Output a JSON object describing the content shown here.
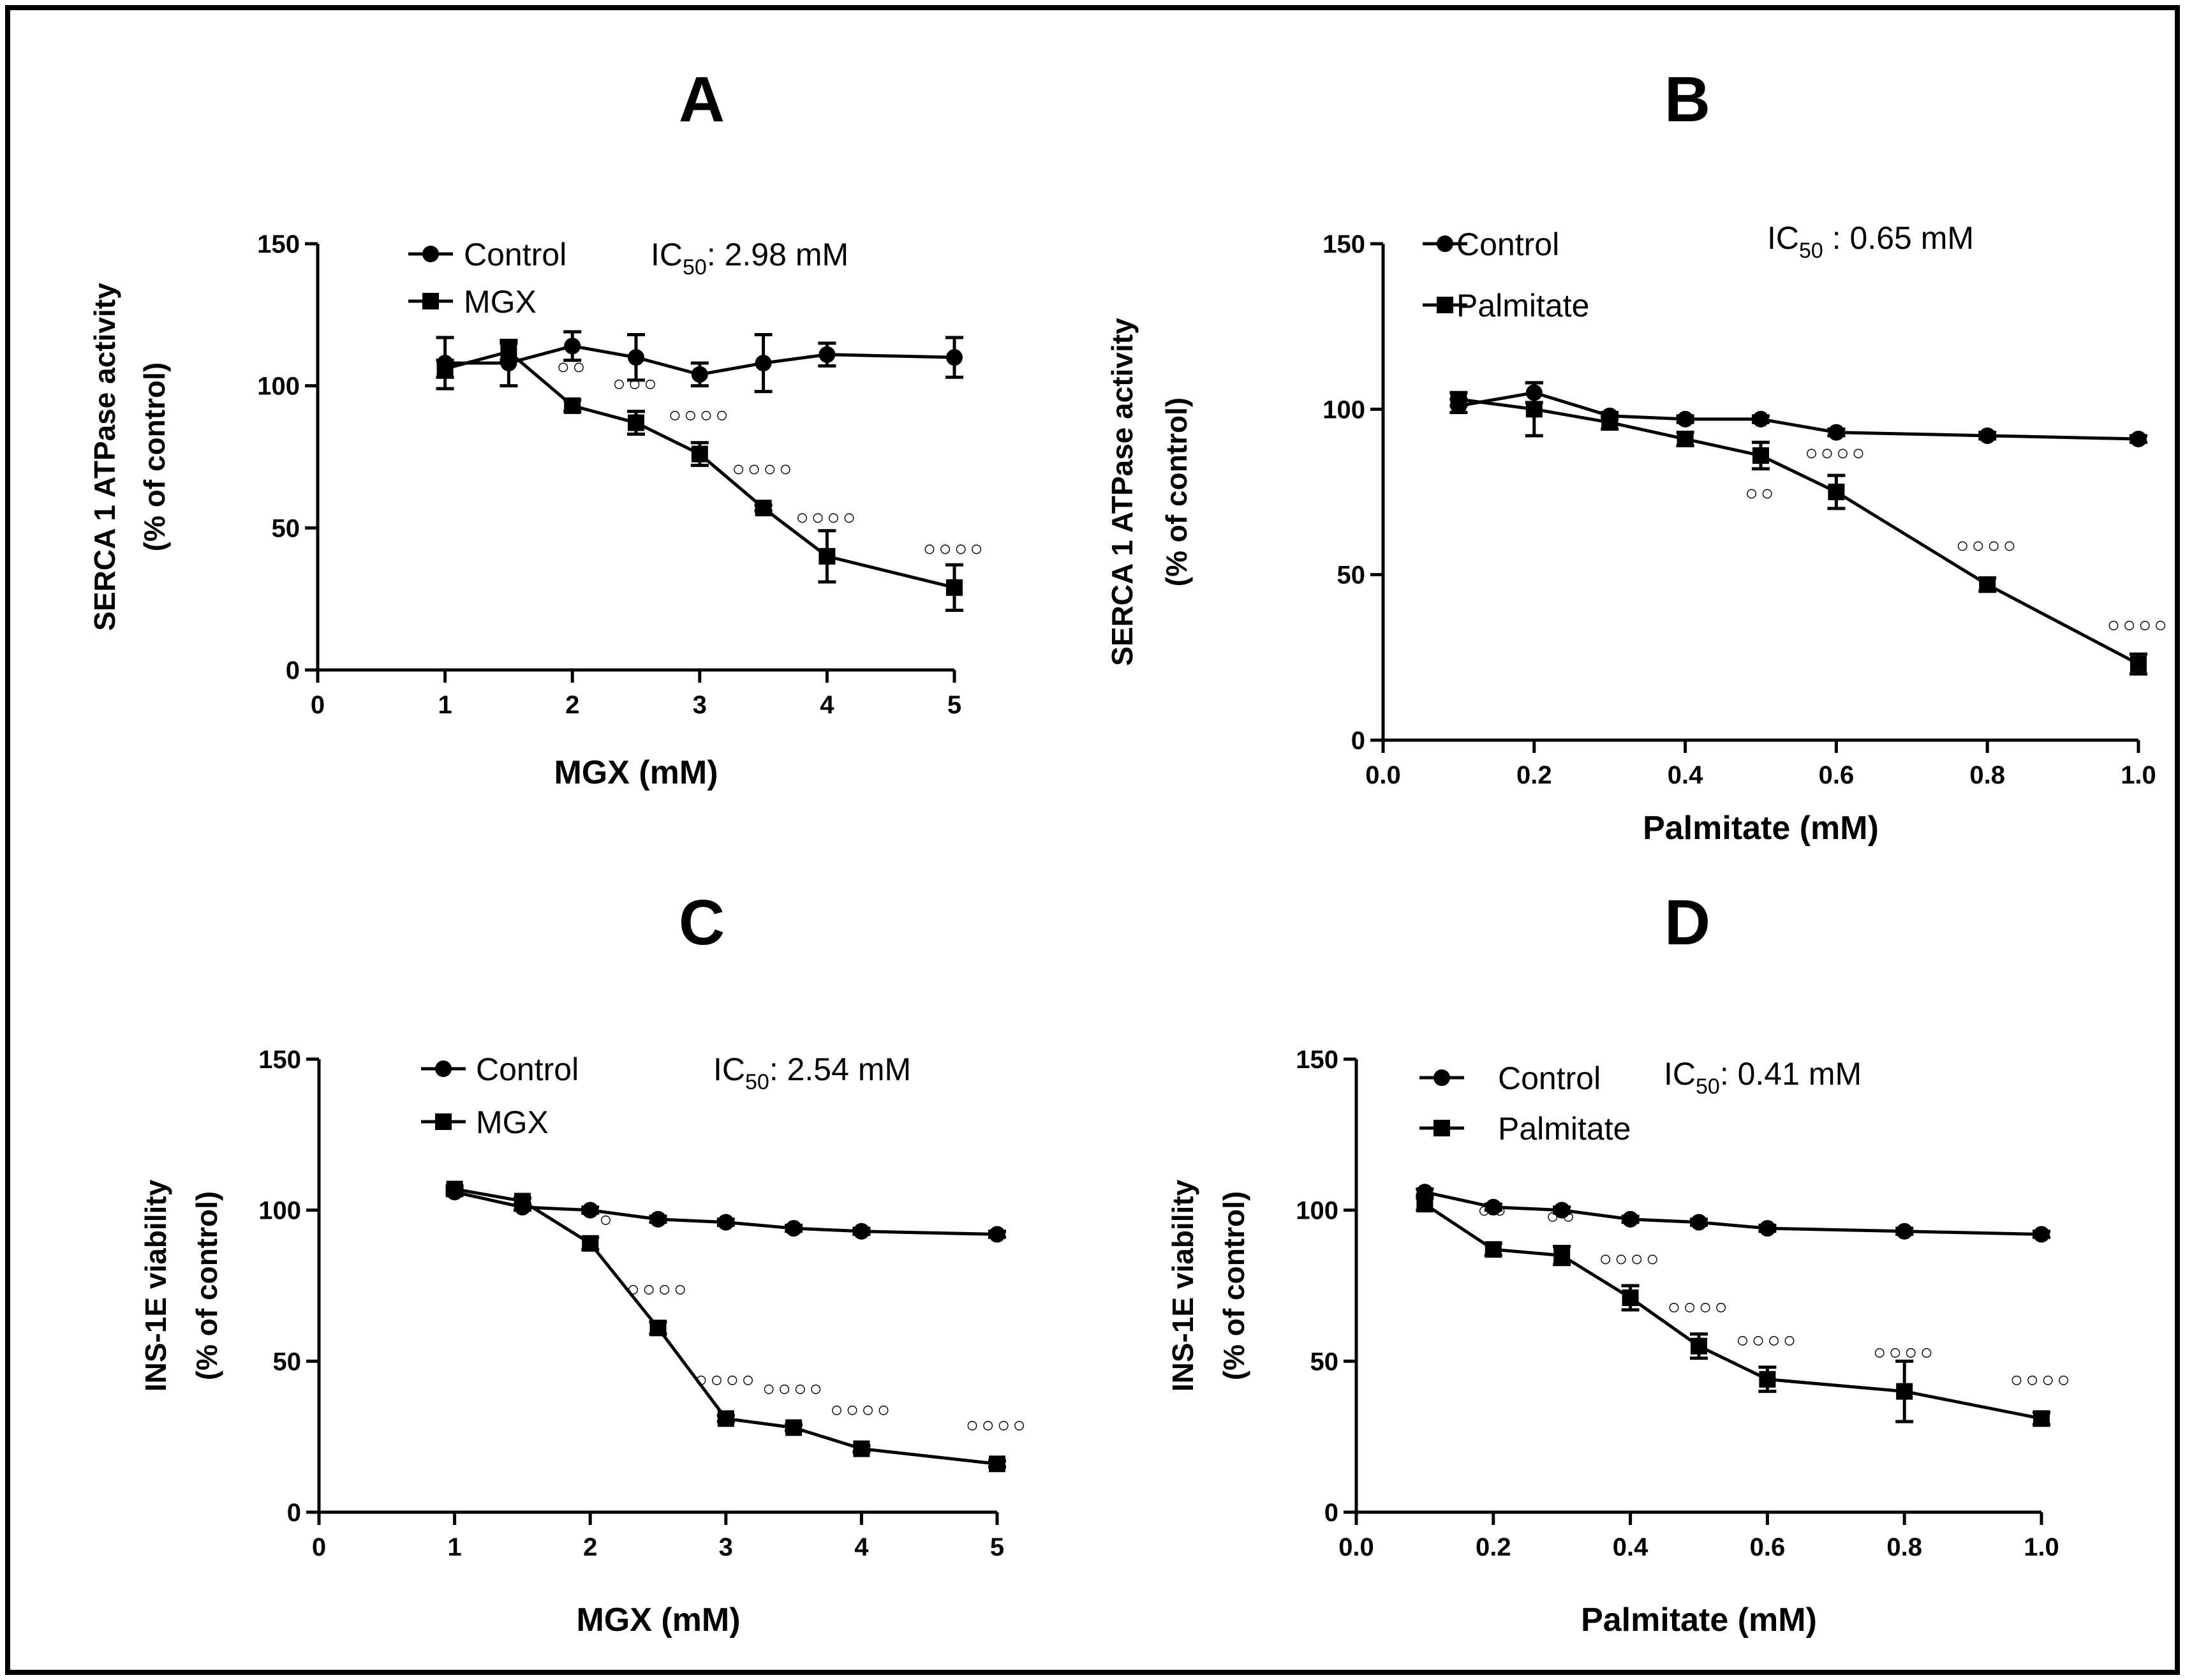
{
  "chart_data": [
    {
      "panel": "A",
      "type": "line",
      "xlabel": "MGX (mM)",
      "ylabel_line1": "SERCA 1 ATPase activity",
      "ylabel_line2": "(% of control)",
      "xlim": [
        0,
        5
      ],
      "ylim": [
        0,
        150
      ],
      "xticks": [
        0,
        1,
        2,
        3,
        4,
        5
      ],
      "xtick_labels": [
        "0",
        "1",
        "2",
        "3",
        "4",
        "5"
      ],
      "yticks": [
        0,
        50,
        100,
        150
      ],
      "ytick_labels": [
        "0",
        "50",
        "100",
        "150"
      ],
      "ic50": {
        "prefix": "IC",
        "sub": "50",
        "text": ": 2.98 mM"
      },
      "series": [
        {
          "name": "Control",
          "marker": "circle",
          "x": [
            1,
            1.5,
            2,
            2.5,
            3,
            3.5,
            4,
            5
          ],
          "y": [
            108,
            108,
            114,
            110,
            104,
            108,
            111,
            110
          ],
          "err": [
            9,
            8,
            5,
            8,
            4,
            10,
            4,
            7
          ]
        },
        {
          "name": "MGX",
          "marker": "square",
          "x": [
            1,
            1.5,
            2,
            2.5,
            3,
            3.5,
            4,
            5
          ],
          "y": [
            106,
            112,
            93,
            87,
            76,
            57,
            40,
            29
          ],
          "err": [
            3,
            3,
            2,
            4,
            4,
            1,
            9,
            8
          ]
        }
      ],
      "annotations": [
        {
          "x": 2,
          "y": 93,
          "text": "○○"
        },
        {
          "x": 2.5,
          "y": 87,
          "text": "○○○"
        },
        {
          "x": 3,
          "y": 76,
          "text": "○○○○"
        },
        {
          "x": 3.5,
          "y": 57,
          "text": "○○○○"
        },
        {
          "x": 4,
          "y": 40,
          "text": "○○○○"
        },
        {
          "x": 5,
          "y": 29,
          "text": "○○○○"
        }
      ]
    },
    {
      "panel": "B",
      "type": "line",
      "xlabel": "Palmitate (mM)",
      "ylabel_line1": "SERCA 1 ATPase activity",
      "ylabel_line2": "(% of control)",
      "xlim": [
        0,
        1
      ],
      "ylim": [
        0,
        150
      ],
      "xticks": [
        0,
        0.2,
        0.4,
        0.6,
        0.8,
        1
      ],
      "xtick_labels": [
        "0.0",
        "0.2",
        "0.4",
        "0.6",
        "0.8",
        "1.0"
      ],
      "yticks": [
        0,
        50,
        100,
        150
      ],
      "ytick_labels": [
        "0",
        "50",
        "100",
        "150"
      ],
      "ic50": {
        "prefix": "IC",
        "sub": "50",
        "text": " : 0.65 mM"
      },
      "series": [
        {
          "name": "Control",
          "marker": "circle",
          "x": [
            0.1,
            0.2,
            0.3,
            0.4,
            0.5,
            0.6,
            0.8,
            1.0
          ],
          "y": [
            101,
            105,
            98,
            97,
            97,
            93,
            92,
            91
          ],
          "err": [
            2,
            3,
            1,
            1,
            1,
            1,
            1,
            1
          ]
        },
        {
          "name": "Palmitate",
          "marker": "square",
          "x": [
            0.1,
            0.2,
            0.3,
            0.4,
            0.5,
            0.6,
            0.8,
            1.0
          ],
          "y": [
            103,
            100,
            96,
            91,
            86,
            75,
            47,
            23
          ],
          "err": [
            2,
            8,
            2,
            2,
            4,
            5,
            2,
            3
          ]
        }
      ],
      "annotations": [
        {
          "x": 0.5,
          "y": 86,
          "text": "○○",
          "pos": "below"
        },
        {
          "x": 0.6,
          "y": 75,
          "text": "○○○○"
        },
        {
          "x": 0.8,
          "y": 47,
          "text": "○○○○"
        },
        {
          "x": 1.0,
          "y": 23,
          "text": "○○○○"
        }
      ]
    },
    {
      "panel": "C",
      "type": "line",
      "xlabel": "MGX (mM)",
      "ylabel_line1": "INS-1E viability",
      "ylabel_line2": "(% of control)",
      "xlim": [
        0,
        5
      ],
      "ylim": [
        0,
        150
      ],
      "xticks": [
        0,
        1,
        2,
        3,
        4,
        5
      ],
      "xtick_labels": [
        "0",
        "1",
        "2",
        "3",
        "4",
        "5"
      ],
      "yticks": [
        0,
        50,
        100,
        150
      ],
      "ytick_labels": [
        "0",
        "50",
        "100",
        "150"
      ],
      "ic50": {
        "prefix": "IC",
        "sub": "50",
        "text": ": 2.54 mM"
      },
      "series": [
        {
          "name": "Control",
          "marker": "circle",
          "x": [
            1,
            1.5,
            2,
            2.5,
            3,
            3.5,
            4,
            5
          ],
          "y": [
            106,
            101,
            100,
            97,
            96,
            94,
            93,
            92
          ],
          "err": [
            1,
            1,
            1,
            1,
            1,
            1,
            1,
            1
          ]
        },
        {
          "name": "MGX",
          "marker": "square",
          "x": [
            1,
            1.5,
            2,
            2.5,
            3,
            3.5,
            4,
            5
          ],
          "y": [
            107,
            103,
            89,
            61,
            31,
            28,
            21,
            16
          ],
          "err": [
            1,
            1,
            2,
            2,
            1,
            1,
            1,
            1
          ]
        }
      ],
      "annotations": [
        {
          "x": 2,
          "y": 89,
          "text": "○",
          "pos": "right"
        },
        {
          "x": 2.5,
          "y": 61,
          "text": "○○○○"
        },
        {
          "x": 3,
          "y": 31,
          "text": "○○○○"
        },
        {
          "x": 3.5,
          "y": 28,
          "text": "○○○○"
        },
        {
          "x": 4,
          "y": 21,
          "text": "○○○○"
        },
        {
          "x": 5,
          "y": 16,
          "text": "○○○○"
        }
      ]
    },
    {
      "panel": "D",
      "type": "line",
      "xlabel": "Palmitate (mM)",
      "ylabel_line1": "INS-1E viability",
      "ylabel_line2": "(% of control)",
      "xlim": [
        0,
        1
      ],
      "ylim": [
        0,
        150
      ],
      "xticks": [
        0,
        0.2,
        0.4,
        0.6,
        0.8,
        1
      ],
      "xtick_labels": [
        "0.0",
        "0.2",
        "0.4",
        "0.6",
        "0.8",
        "1.0"
      ],
      "yticks": [
        0,
        50,
        100,
        150
      ],
      "ytick_labels": [
        "0",
        "50",
        "100",
        "150"
      ],
      "ic50": {
        "prefix": "IC",
        "sub": "50",
        "text": ": 0.41 mM"
      },
      "series": [
        {
          "name": "Control",
          "marker": "circle",
          "x": [
            0.1,
            0.2,
            0.3,
            0.4,
            0.5,
            0.6,
            0.8,
            1.0
          ],
          "y": [
            106,
            101,
            100,
            97,
            96,
            94,
            93,
            92
          ],
          "err": [
            1,
            1,
            1,
            1,
            1,
            1,
            1,
            1
          ]
        },
        {
          "name": "Palmitate",
          "marker": "square",
          "x": [
            0.1,
            0.2,
            0.3,
            0.4,
            0.5,
            0.6,
            0.8,
            1.0
          ],
          "y": [
            102,
            87,
            85,
            71,
            55,
            44,
            40,
            31
          ],
          "err": [
            2,
            2,
            3,
            4,
            4,
            4,
            10,
            2
          ]
        }
      ],
      "annotations": [
        {
          "x": 0.2,
          "y": 87,
          "text": "○○"
        },
        {
          "x": 0.3,
          "y": 85,
          "text": "○○"
        },
        {
          "x": 0.4,
          "y": 71,
          "text": "○○○○"
        },
        {
          "x": 0.5,
          "y": 55,
          "text": "○○○○"
        },
        {
          "x": 0.6,
          "y": 44,
          "text": "○○○○"
        },
        {
          "x": 0.8,
          "y": 40,
          "text": "○○○○"
        },
        {
          "x": 1.0,
          "y": 31,
          "text": "○○○○"
        }
      ]
    }
  ]
}
